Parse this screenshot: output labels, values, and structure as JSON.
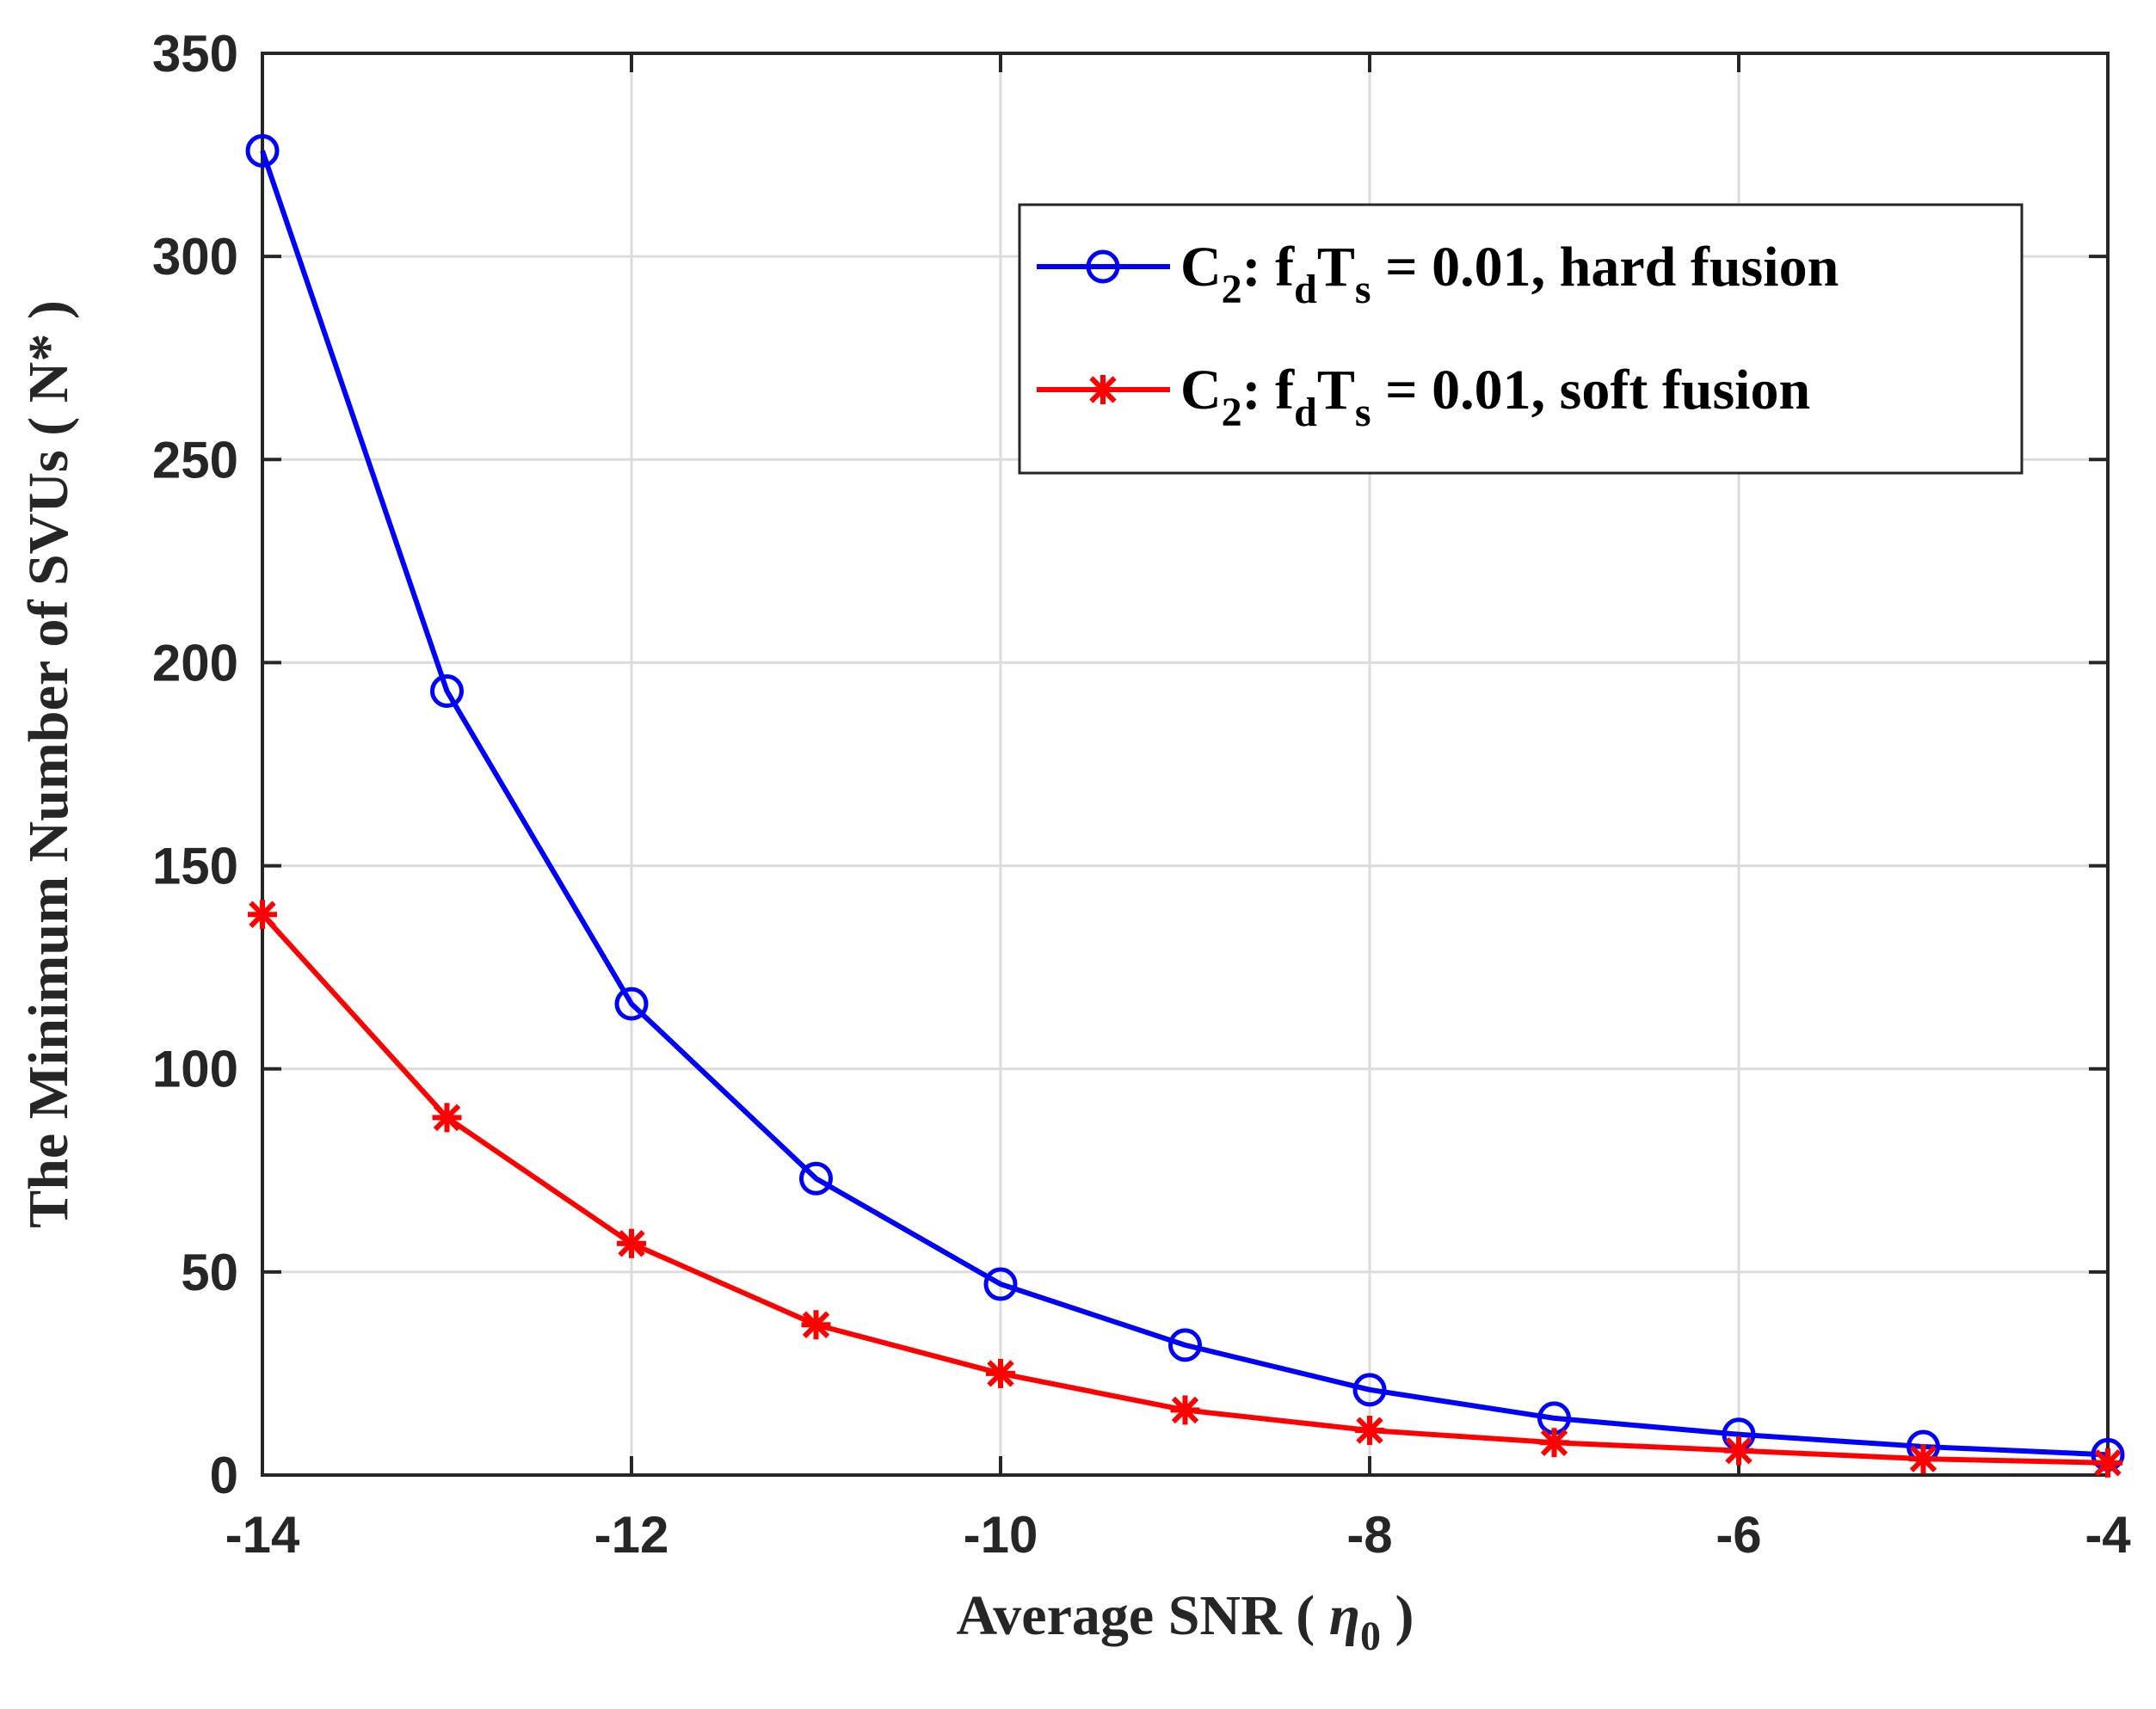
{
  "chart_data": {
    "type": "line",
    "xlabel_text": "Average SNR ( ",
    "xlabel_symbol": "η",
    "xlabel_sub": "0",
    "xlabel_close": " )",
    "ylabel": "The Minimum Number of SVUs ( N* )",
    "xlim": [
      -14,
      -4
    ],
    "ylim": [
      0,
      350
    ],
    "xticks": [
      -14,
      -12,
      -10,
      -8,
      -6,
      -4
    ],
    "yticks": [
      0,
      50,
      100,
      150,
      200,
      250,
      300,
      350
    ],
    "grid": true,
    "legend_position": "top-right",
    "x": [
      -14,
      -13,
      -12,
      -11,
      -10,
      -9,
      -8,
      -7,
      -6,
      -5,
      -4
    ],
    "series": [
      {
        "name": "C2: fdTs = 0.01, hard fusion",
        "color": "#0000ff",
        "marker": "circle",
        "values": [
          326,
          193,
          116,
          73,
          47,
          32,
          21,
          14,
          10,
          7,
          5
        ]
      },
      {
        "name": "C2: fdTs = 0.01, soft fusion",
        "color": "#ff0000",
        "marker": "asterisk",
        "values": [
          138,
          88,
          57,
          37,
          25,
          16,
          11,
          8,
          6,
          4,
          3
        ]
      }
    ],
    "legend": [
      {
        "c": "C",
        "c_sub": "2",
        "sep": ":  f",
        "f_sub": "d",
        "t": "T",
        "t_sub": "s",
        "rest": " = 0.01, hard fusion"
      },
      {
        "c": "C",
        "c_sub": "2",
        "sep": ":  f",
        "f_sub": "d",
        "t": "T",
        "t_sub": "s",
        "rest": " = 0.01, soft fusion"
      }
    ]
  }
}
